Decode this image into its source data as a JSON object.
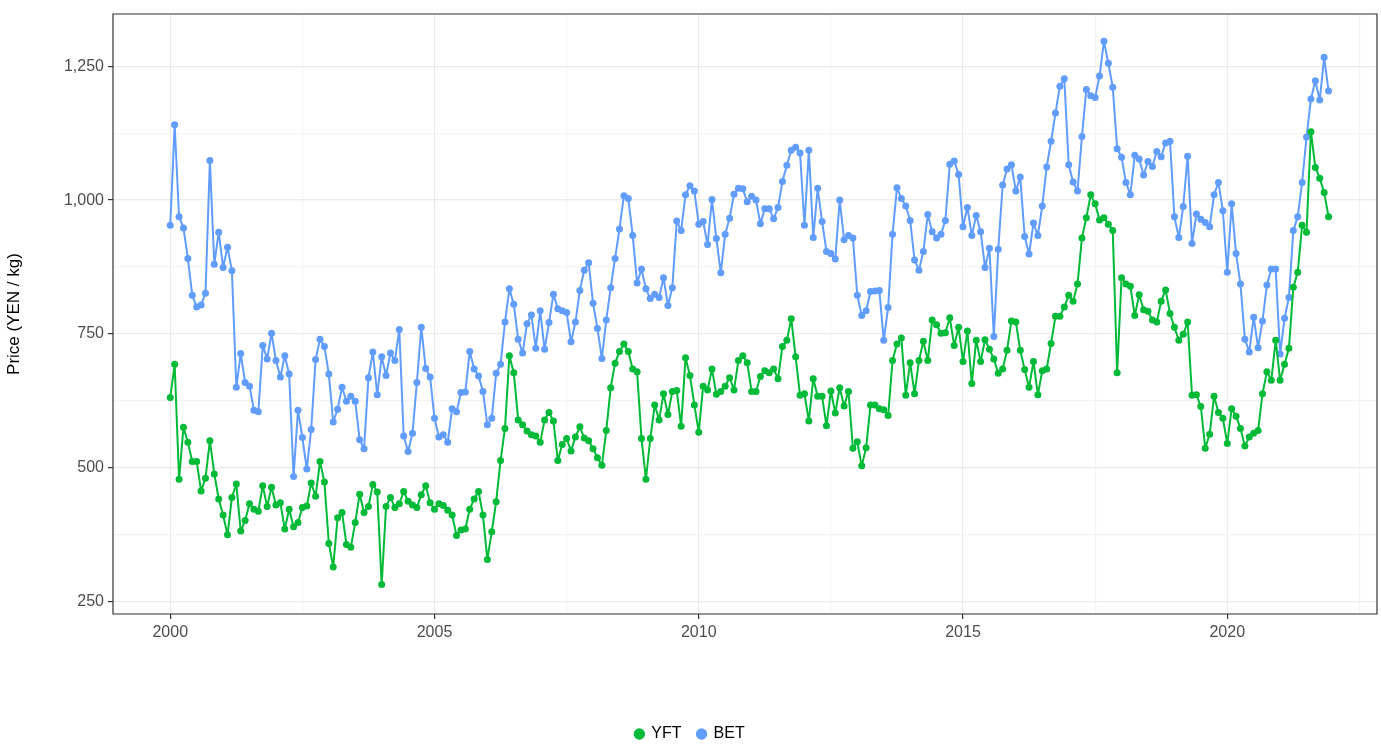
{
  "chart_data": {
    "type": "line",
    "ylabel": "Price (YEN / kg)",
    "x": [
      "2000-01",
      "2000-02",
      "2000-03",
      "2000-04",
      "2000-05",
      "2000-06",
      "2000-07",
      "2000-08",
      "2000-09",
      "2000-10",
      "2000-11",
      "2000-12",
      "2001-01",
      "2001-02",
      "2001-03",
      "2001-04",
      "2001-05",
      "2001-06",
      "2001-07",
      "2001-08",
      "2001-09",
      "2001-10",
      "2001-11",
      "2001-12",
      "2002-01",
      "2002-02",
      "2002-03",
      "2002-04",
      "2002-05",
      "2002-06",
      "2002-07",
      "2002-08",
      "2002-09",
      "2002-10",
      "2002-11",
      "2002-12",
      "2003-01",
      "2003-02",
      "2003-03",
      "2003-04",
      "2003-05",
      "2003-06",
      "2003-07",
      "2003-08",
      "2003-09",
      "2003-10",
      "2003-11",
      "2003-12",
      "2004-01",
      "2004-02",
      "2004-03",
      "2004-04",
      "2004-05",
      "2004-06",
      "2004-07",
      "2004-08",
      "2004-09",
      "2004-10",
      "2004-11",
      "2004-12",
      "2005-01",
      "2005-02",
      "2005-03",
      "2005-04",
      "2005-05",
      "2005-06",
      "2005-07",
      "2005-08",
      "2005-09",
      "2005-10",
      "2005-11",
      "2005-12",
      "2006-01",
      "2006-02",
      "2006-03",
      "2006-04",
      "2006-05",
      "2006-06",
      "2006-07",
      "2006-08",
      "2006-09",
      "2006-10",
      "2006-11",
      "2006-12",
      "2007-01",
      "2007-02",
      "2007-03",
      "2007-04",
      "2007-05",
      "2007-06",
      "2007-07",
      "2007-08",
      "2007-09",
      "2007-10",
      "2007-11",
      "2007-12",
      "2008-01",
      "2008-02",
      "2008-03",
      "2008-04",
      "2008-05",
      "2008-06",
      "2008-07",
      "2008-08",
      "2008-09",
      "2008-10",
      "2008-11",
      "2008-12",
      "2009-01",
      "2009-02",
      "2009-03",
      "2009-04",
      "2009-05",
      "2009-06",
      "2009-07",
      "2009-08",
      "2009-09",
      "2009-10",
      "2009-11",
      "2009-12",
      "2010-01",
      "2010-02",
      "2010-03",
      "2010-04",
      "2010-05",
      "2010-06",
      "2010-07",
      "2010-08",
      "2010-09",
      "2010-10",
      "2010-11",
      "2010-12",
      "2011-01",
      "2011-02",
      "2011-03",
      "2011-04",
      "2011-05",
      "2011-06",
      "2011-07",
      "2011-08",
      "2011-09",
      "2011-10",
      "2011-11",
      "2011-12",
      "2012-01",
      "2012-02",
      "2012-03",
      "2012-04",
      "2012-05",
      "2012-06",
      "2012-07",
      "2012-08",
      "2012-09",
      "2012-10",
      "2012-11",
      "2012-12",
      "2013-01",
      "2013-02",
      "2013-03",
      "2013-04",
      "2013-05",
      "2013-06",
      "2013-07",
      "2013-08",
      "2013-09",
      "2013-10",
      "2013-11",
      "2013-12",
      "2014-01",
      "2014-02",
      "2014-03",
      "2014-04",
      "2014-05",
      "2014-06",
      "2014-07",
      "2014-08",
      "2014-09",
      "2014-10",
      "2014-11",
      "2014-12",
      "2015-01",
      "2015-02",
      "2015-03",
      "2015-04",
      "2015-05",
      "2015-06",
      "2015-07",
      "2015-08",
      "2015-09",
      "2015-10",
      "2015-11",
      "2015-12",
      "2016-01",
      "2016-02",
      "2016-03",
      "2016-04",
      "2016-05",
      "2016-06",
      "2016-07",
      "2016-08",
      "2016-09",
      "2016-10",
      "2016-11",
      "2016-12",
      "2017-01",
      "2017-02",
      "2017-03",
      "2017-04",
      "2017-05",
      "2017-06",
      "2017-07",
      "2017-08",
      "2017-09",
      "2017-10",
      "2017-11",
      "2017-12",
      "2018-01",
      "2018-02",
      "2018-03",
      "2018-04",
      "2018-05",
      "2018-06",
      "2018-07",
      "2018-08",
      "2018-09",
      "2018-10",
      "2018-11",
      "2018-12",
      "2019-01",
      "2019-02",
      "2019-03",
      "2019-04",
      "2019-05",
      "2019-06",
      "2019-07",
      "2019-08",
      "2019-09",
      "2019-10",
      "2019-11",
      "2019-12",
      "2020-01",
      "2020-02",
      "2020-03",
      "2020-04",
      "2020-05",
      "2020-06",
      "2020-07",
      "2020-08",
      "2020-09",
      "2020-10",
      "2020-11",
      "2020-12",
      "2021-01",
      "2021-02",
      "2021-03",
      "2021-04",
      "2021-05",
      "2021-06",
      "2021-07",
      "2021-08",
      "2021-09",
      "2021-10",
      "2021-11",
      "2021-12"
    ],
    "series": [
      {
        "name": "YFT",
        "color": "#00ba38",
        "values": [
          631,
          693,
          478,
          575,
          547,
          511,
          511,
          456,
          480,
          550,
          488,
          441,
          411,
          374,
          444,
          469,
          381,
          401,
          432,
          422,
          418,
          466,
          427,
          463,
          430,
          434,
          385,
          422,
          389,
          397,
          425,
          428,
          471,
          446,
          511,
          473,
          358,
          314,
          406,
          416,
          356,
          351,
          397,
          450,
          416,
          427,
          468,
          454,
          281,
          427,
          444,
          425,
          432,
          455,
          437,
          430,
          425,
          449,
          466,
          434,
          422,
          432,
          429,
          420,
          411,
          373,
          383,
          385,
          422,
          441,
          455,
          411,
          328,
          380,
          436,
          513,
          573,
          709,
          677,
          589,
          580,
          568,
          561,
          559,
          547,
          589,
          603,
          587,
          513,
          543,
          554,
          531,
          557,
          576,
          555,
          550,
          535,
          518,
          504,
          569,
          649,
          695,
          717,
          731,
          717,
          684,
          679,
          554,
          478,
          554,
          617,
          589,
          638,
          599,
          642,
          644,
          577,
          705,
          672,
          617,
          566,
          652,
          645,
          684,
          637,
          642,
          652,
          668,
          645,
          700,
          709,
          696,
          642,
          642,
          670,
          681,
          677,
          684,
          666,
          726,
          738,
          778,
          707,
          635,
          638,
          587,
          666,
          633,
          633,
          578,
          643,
          602,
          649,
          615,
          642,
          536,
          548,
          503,
          537,
          617,
          617,
          610,
          608,
          597,
          700,
          731,
          742,
          635,
          696,
          638,
          700,
          736,
          700,
          776,
          767,
          751,
          752,
          780,
          728,
          762,
          698,
          755,
          657,
          738,
          698,
          739,
          721,
          703,
          676,
          684,
          719,
          774,
          772,
          719,
          683,
          650,
          698,
          636,
          681,
          684,
          732,
          783,
          783,
          800,
          822,
          811,
          843,
          929,
          967,
          1010,
          993,
          963,
          967,
          955,
          943,
          677,
          855,
          843,
          839,
          784,
          823,
          795,
          792,
          776,
          772,
          811,
          832,
          788,
          762,
          738,
          749,
          772,
          635,
          636,
          614,
          536,
          562,
          633,
          603,
          592,
          545,
          610,
          596,
          573,
          540,
          557,
          564,
          569,
          638,
          679,
          663,
          738,
          663,
          693,
          723,
          837,
          865,
          953,
          940,
          1128,
          1061,
          1041,
          1014,
          969
        ]
      },
      {
        "name": "BET",
        "color": "#619cff",
        "values": [
          953,
          1141,
          969,
          948,
          891,
          822,
          800,
          804,
          826,
          1074,
          880,
          940,
          874,
          912,
          868,
          650,
          713,
          659,
          652,
          607,
          604,
          728,
          703,
          751,
          700,
          669,
          709,
          675,
          483,
          607,
          556,
          497,
          571,
          702,
          740,
          726,
          675,
          585,
          609,
          650,
          624,
          633,
          624,
          552,
          535,
          668,
          716,
          636,
          707,
          672,
          714,
          700,
          758,
          559,
          530,
          564,
          659,
          762,
          685,
          669,
          592,
          557,
          561,
          547,
          610,
          604,
          640,
          641,
          717,
          684,
          671,
          642,
          580,
          592,
          676,
          693,
          772,
          834,
          805,
          740,
          714,
          769,
          785,
          723,
          793,
          721,
          771,
          824,
          797,
          793,
          790,
          735,
          772,
          831,
          869,
          883,
          807,
          760,
          704,
          776,
          836,
          891,
          946,
          1008,
          1003,
          934,
          845,
          871,
          834,
          816,
          824,
          818,
          855,
          803,
          836,
          961,
          943,
          1010,
          1027,
          1017,
          955,
          960,
          917,
          1001,
          928,
          864,
          936,
          966,
          1011,
          1022,
          1021,
          997,
          1007,
          1000,
          956,
          984,
          984,
          965,
          986,
          1035,
          1065,
          1093,
          1099,
          1088,
          953,
          1093,
          930,
          1022,
          960,
          904,
          900,
          890,
          1000,
          926,
          934,
          929,
          822,
          784,
          793,
          829,
          830,
          831,
          738,
          799,
          936,
          1023,
          1003,
          989,
          962,
          888,
          869,
          904,
          973,
          941,
          929,
          936,
          962,
          1067,
          1073,
          1048,
          950,
          986,
          934,
          971,
          941,
          874,
          910,
          745,
          908,
          1028,
          1058,
          1066,
          1017,
          1043,
          932,
          899,
          957,
          934,
          989,
          1062,
          1110,
          1163,
          1213,
          1227,
          1066,
          1034,
          1017,
          1119,
          1207,
          1195,
          1192,
          1232,
          1297,
          1256,
          1211,
          1096,
          1080,
          1033,
          1010,
          1084,
          1077,
          1047,
          1072,
          1063,
          1091,
          1081,
          1107,
          1110,
          969,
          930,
          988,
          1082,
          919,
          974,
          964,
          958,
          950,
          1010,
          1033,
          980,
          865,
          993,
          900,
          843,
          740,
          716,
          781,
          724,
          774,
          841,
          871,
          871,
          712,
          779,
          818,
          943,
          969,
          1033,
          1118,
          1189,
          1223,
          1187,
          1267,
          1204
        ]
      }
    ],
    "xlim": [
      "1998-12",
      "2022-11"
    ],
    "xticks": [
      "2000",
      {
        "value": "2002-07",
        "label": null
      },
      "2005",
      {
        "value": "2007-07",
        "label": null
      },
      "2010",
      {
        "value": "2012-07",
        "label": null
      },
      "2015",
      {
        "value": "2017-07",
        "label": null
      },
      "2020",
      {
        "value": "2022-07",
        "label": null
      }
    ],
    "ylim": [
      226,
      1348
    ],
    "yticks": [
      250,
      {
        "value": 375,
        "label": null
      },
      500,
      {
        "value": 625,
        "label": null
      },
      750,
      {
        "value": 875,
        "label": null
      },
      {
        "value": 1000,
        "label": "1,000"
      },
      {
        "value": 1125,
        "label": null
      },
      {
        "value": 1250,
        "label": "1,250"
      }
    ],
    "grid": true,
    "legend": "bottom",
    "marker": "circle",
    "line_style": "solid"
  }
}
